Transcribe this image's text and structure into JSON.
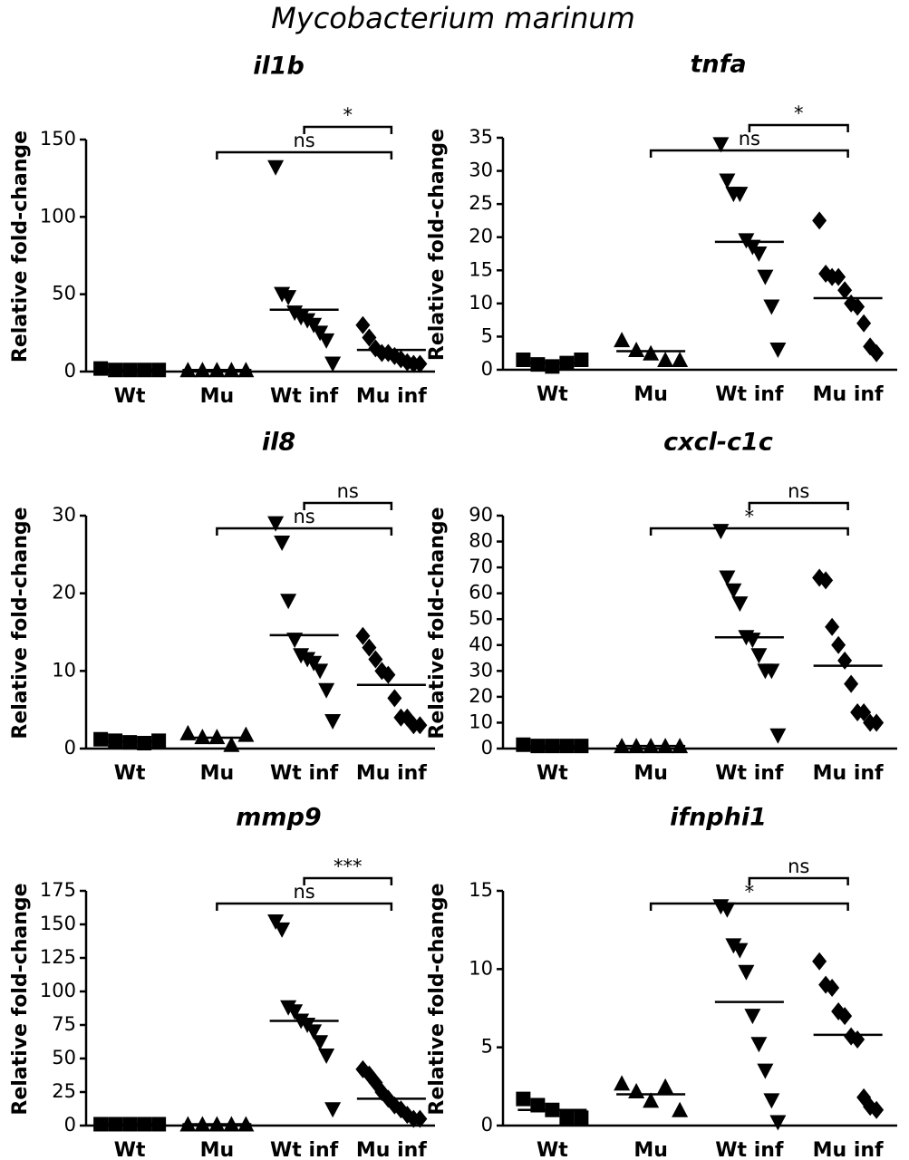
{
  "title": "Mycobacterium marinum",
  "chart_data": [
    {
      "type": "dotplot",
      "title": "il1b",
      "ylabel": "Relative fold-change",
      "categories": [
        "Wt",
        "Mu",
        "Wt inf",
        "Mu inf"
      ],
      "markers": [
        "square",
        "triangle-up",
        "triangle-down",
        "diamond"
      ],
      "color": "#000000",
      "points": [
        [
          2,
          1,
          1,
          1,
          1
        ],
        [
          1,
          1,
          1,
          1,
          1
        ],
        [
          132,
          50,
          48,
          38,
          35,
          33,
          30,
          25,
          20,
          5
        ],
        [
          30,
          22,
          15,
          12,
          12,
          10,
          8,
          6,
          5,
          5
        ]
      ],
      "means": [
        1.2,
        1,
        40,
        14
      ],
      "ylim": [
        0,
        150
      ],
      "yticks": [
        0,
        50,
        100,
        150
      ],
      "comparisons": [
        {
          "from": 1,
          "to": 3,
          "label": "ns"
        },
        {
          "from": 2,
          "to": 3,
          "label": "*"
        }
      ]
    },
    {
      "type": "dotplot",
      "title": "tnfa",
      "ylabel": "Relative fold-change",
      "categories": [
        "Wt",
        "Mu",
        "Wt inf",
        "Mu inf"
      ],
      "markers": [
        "square",
        "triangle-up",
        "triangle-down",
        "diamond"
      ],
      "color": "#000000",
      "points": [
        [
          1.5,
          0.8,
          0.5,
          1,
          1.5
        ],
        [
          4.5,
          3,
          2.5,
          1.5,
          1.5
        ],
        [
          34,
          28.5,
          26.5,
          26.5,
          19.5,
          18.5,
          17.5,
          14,
          9.5,
          3
        ],
        [
          22.5,
          14.5,
          14,
          14,
          12,
          10,
          9.5,
          7,
          3.5,
          2.5
        ]
      ],
      "means": [
        1,
        2.8,
        19.3,
        10.8
      ],
      "ylim": [
        0,
        35
      ],
      "yticks": [
        0,
        5,
        10,
        15,
        20,
        25,
        30,
        35
      ],
      "comparisons": [
        {
          "from": 1,
          "to": 3,
          "label": "ns"
        },
        {
          "from": 2,
          "to": 3,
          "label": "*"
        }
      ]
    },
    {
      "type": "dotplot",
      "title": "il8",
      "ylabel": "Relative fold-change",
      "categories": [
        "Wt",
        "Mu",
        "Wt inf",
        "Mu inf"
      ],
      "markers": [
        "square",
        "triangle-up",
        "triangle-down",
        "diamond"
      ],
      "color": "#000000",
      "points": [
        [
          1.2,
          1,
          0.8,
          0.7,
          1
        ],
        [
          2,
          1.5,
          1.5,
          0.5,
          1.8
        ],
        [
          29,
          26.5,
          19,
          14,
          12,
          11.5,
          11,
          10,
          7.5,
          3.5
        ],
        [
          14.5,
          13,
          11.5,
          10,
          9.5,
          6.5,
          4,
          4,
          3,
          3
        ]
      ],
      "means": [
        0.9,
        1.4,
        14.6,
        8.2
      ],
      "ylim": [
        0,
        30
      ],
      "yticks": [
        0,
        10,
        20,
        30
      ],
      "comparisons": [
        {
          "from": 1,
          "to": 3,
          "label": "ns"
        },
        {
          "from": 2,
          "to": 3,
          "label": "ns"
        }
      ]
    },
    {
      "type": "dotplot",
      "title": "cxcl-c1c",
      "ylabel": "Relative fold-change",
      "categories": [
        "Wt",
        "Mu",
        "Wt inf",
        "Mu inf"
      ],
      "markers": [
        "square",
        "triangle-up",
        "triangle-down",
        "diamond"
      ],
      "color": "#000000",
      "points": [
        [
          1.5,
          1,
          1,
          1,
          1
        ],
        [
          1,
          1,
          1,
          1,
          1
        ],
        [
          84,
          66,
          61,
          56,
          43,
          42,
          36,
          30,
          30,
          5
        ],
        [
          66,
          65,
          47,
          40,
          34,
          25,
          14,
          14,
          10,
          10
        ]
      ],
      "means": [
        1,
        1,
        43,
        32
      ],
      "ylim": [
        0,
        90
      ],
      "yticks": [
        0,
        10,
        20,
        30,
        40,
        50,
        60,
        70,
        80,
        90
      ],
      "comparisons": [
        {
          "from": 1,
          "to": 3,
          "label": "*"
        },
        {
          "from": 2,
          "to": 3,
          "label": "ns"
        }
      ]
    },
    {
      "type": "dotplot",
      "title": "mmp9",
      "ylabel": "Relative fold-change",
      "categories": [
        "Wt",
        "Mu",
        "Wt inf",
        "Mu inf"
      ],
      "markers": [
        "square",
        "triangle-up",
        "triangle-down",
        "diamond"
      ],
      "color": "#000000",
      "points": [
        [
          1,
          1,
          1,
          1,
          1
        ],
        [
          1,
          1,
          1,
          1,
          1
        ],
        [
          152,
          146,
          88,
          85,
          78,
          75,
          70,
          62,
          52,
          12
        ],
        [
          42,
          38,
          32,
          25,
          20,
          15,
          12,
          8,
          5,
          5
        ]
      ],
      "means": [
        1,
        1,
        78,
        20
      ],
      "ylim": [
        0,
        175
      ],
      "yticks": [
        0,
        25,
        50,
        75,
        100,
        125,
        150,
        175
      ],
      "comparisons": [
        {
          "from": 1,
          "to": 3,
          "label": "ns"
        },
        {
          "from": 2,
          "to": 3,
          "label": "***"
        }
      ]
    },
    {
      "type": "dotplot",
      "title": "ifnphi1",
      "ylabel": "Relative fold-change",
      "categories": [
        "Wt",
        "Mu",
        "Wt inf",
        "Mu inf"
      ],
      "markers": [
        "square",
        "triangle-up",
        "triangle-down",
        "diamond"
      ],
      "color": "#000000",
      "points": [
        [
          1.7,
          1.3,
          1,
          0.5,
          0.5
        ],
        [
          2.7,
          2.2,
          1.6,
          2.5,
          1
        ],
        [
          14,
          13.8,
          11.5,
          11.2,
          9.8,
          7,
          5.2,
          3.5,
          1.6,
          0.2
        ],
        [
          10.5,
          9,
          8.8,
          7.3,
          7,
          5.7,
          5.5,
          1.8,
          1.2,
          1
        ]
      ],
      "means": [
        1,
        2,
        7.9,
        5.8
      ],
      "ylim": [
        0,
        15
      ],
      "yticks": [
        0,
        5,
        10,
        15
      ],
      "comparisons": [
        {
          "from": 1,
          "to": 3,
          "label": "*"
        },
        {
          "from": 2,
          "to": 3,
          "label": "ns"
        }
      ]
    }
  ]
}
